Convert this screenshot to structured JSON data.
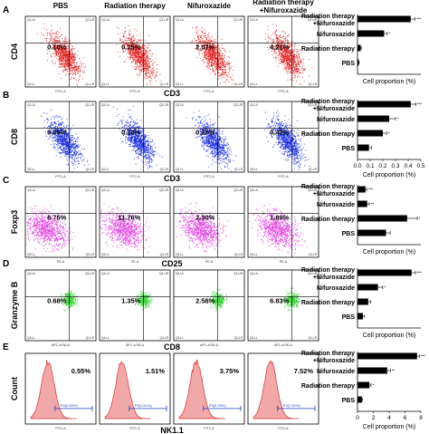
{
  "columns": [
    "PBS",
    "Radiation therapy",
    "Nifuroxazide",
    "Radiation therapy\n+Nifuroxazide"
  ],
  "panels": [
    {
      "letter": "A",
      "ylabel": "CD4",
      "xlabel": "CD3",
      "axis_tick_label": "FITC-A",
      "dot_color": "#e02020",
      "type": "scatter",
      "values_text": [
        "0.10%",
        "0.25%",
        "2.07%",
        "4.21%"
      ],
      "quadrant_labels": [
        "Q1-UL",
        "Q1-UR",
        "Q1-LL",
        "Q1-LR"
      ],
      "gate_lines": true
    },
    {
      "letter": "B",
      "ylabel": "CD8",
      "xlabel": "CD3",
      "axis_tick_label": "FITC-A",
      "dot_color": "#1a2ee0",
      "type": "scatter",
      "values_text": [
        "0.09%",
        "0.20%",
        "0.25%",
        "0.42%"
      ],
      "quadrant_labels": [
        "Q2-UL",
        "Q2-UR",
        "Q2-LL",
        "Q2-LR"
      ],
      "gate_lines": true
    },
    {
      "letter": "C",
      "ylabel": "Foxp3",
      "xlabel": "CD25",
      "axis_tick_label": "PE-A",
      "dot_color": "#e040e0",
      "type": "scatter",
      "values_text": [
        "6.75%",
        "11.76%",
        "2.30%",
        "1.89%"
      ],
      "quadrant_labels": [
        "Q3-UL",
        "Q3-UR",
        "Q3-LL",
        "Q3-LR"
      ],
      "gate_lines": true
    },
    {
      "letter": "D",
      "ylabel": "Granzyme B",
      "xlabel": "CD8",
      "axis_tick_label": "APC-A750-A",
      "dot_color": "#30d030",
      "type": "scatter",
      "values_text": [
        "0.68%",
        "1.35%",
        "2.58%",
        "6.83%"
      ],
      "quadrant_labels": [
        "Q4-UL",
        "Q4-UR",
        "Q4-LL",
        "Q4-LR"
      ],
      "gate_lines": true
    },
    {
      "letter": "E",
      "ylabel": "Count",
      "xlabel": "NK1.1",
      "axis_tick_label": "FITC-A",
      "dot_color": "#e06060",
      "type": "histogram",
      "values_text": [
        "0.55%",
        "1.51%",
        "3.75%",
        "7.52%"
      ],
      "gate_labels": [
        "P3(0.55%)",
        "P3(1.51%)",
        "P3(3.75%)",
        "P3(7.52%)"
      ],
      "gate_lines": false
    }
  ],
  "chart_data": [
    {
      "type": "bar",
      "orientation": "horizontal",
      "categories": [
        "Radiation therapy\n+Nifuroxazide",
        "Nifuroxazide",
        "Radiation therapy",
        "PBS"
      ],
      "values": [
        4.2,
        2.1,
        0.25,
        0.1
      ],
      "errors": [
        0.35,
        0.25,
        0.05,
        0.03
      ],
      "significance": [
        "***",
        "*",
        "",
        ""
      ],
      "xlabel": "Cell proportion (%)",
      "xlim": [
        0,
        5
      ],
      "xticks": [],
      "panel": "A"
    },
    {
      "type": "bar",
      "orientation": "horizontal",
      "categories": [
        "Radiation therapy\n+Nifuroxazide",
        "Nifuroxazide",
        "Radiation therapy",
        "PBS"
      ],
      "values": [
        0.42,
        0.25,
        0.2,
        0.09
      ],
      "errors": [
        0.04,
        0.05,
        0.03,
        0.02
      ],
      "significance": [
        "***",
        "*",
        "*",
        ""
      ],
      "xlabel": "Cell proportion (%)",
      "xlim": [
        0,
        0.5
      ],
      "xticks": [
        "0.0",
        "0.1",
        "0.2",
        "0.3",
        "0.4",
        "0.5"
      ],
      "panel": "B"
    },
    {
      "type": "bar",
      "orientation": "horizontal",
      "categories": [
        "Radiation therapy\n+Nifuroxazide",
        "Nifuroxazide",
        "Radiation therapy",
        "PBS"
      ],
      "values": [
        1.89,
        2.3,
        11.76,
        6.75
      ],
      "errors": [
        0.3,
        0.5,
        2.4,
        1.0
      ],
      "significance": [
        "***",
        "**",
        "*",
        ""
      ],
      "xlabel": "Cell proportion (%)",
      "xlim": [
        0,
        15
      ],
      "xticks": [],
      "panel": "C"
    },
    {
      "type": "bar",
      "orientation": "horizontal",
      "categories": [
        "Radiation therapy\n+Nifuroxazide",
        "Nifuroxazide",
        "Radiation therapy",
        "PBS"
      ],
      "values": [
        6.83,
        2.58,
        1.35,
        0.68
      ],
      "errors": [
        0.5,
        0.6,
        0.3,
        0.2
      ],
      "significance": [
        "***",
        "*",
        "",
        ""
      ],
      "xlabel": "Cell proportion (%)",
      "xlim": [
        0,
        8
      ],
      "xticks": [],
      "panel": "D"
    },
    {
      "type": "bar",
      "orientation": "horizontal",
      "categories": [
        "Radiation therapy\n+Nifuroxazide",
        "Nifuroxazide",
        "Radiation therapy",
        "PBS"
      ],
      "values": [
        7.52,
        3.75,
        1.51,
        0.55
      ],
      "errors": [
        0.3,
        0.4,
        0.2,
        0.1
      ],
      "significance": [
        "***",
        "**",
        "*",
        ""
      ],
      "xlabel": "Cell proportion (%)",
      "xlim": [
        0,
        8
      ],
      "xticks": [
        "0",
        "2",
        "4",
        "6",
        "8"
      ],
      "panel": "E"
    }
  ]
}
